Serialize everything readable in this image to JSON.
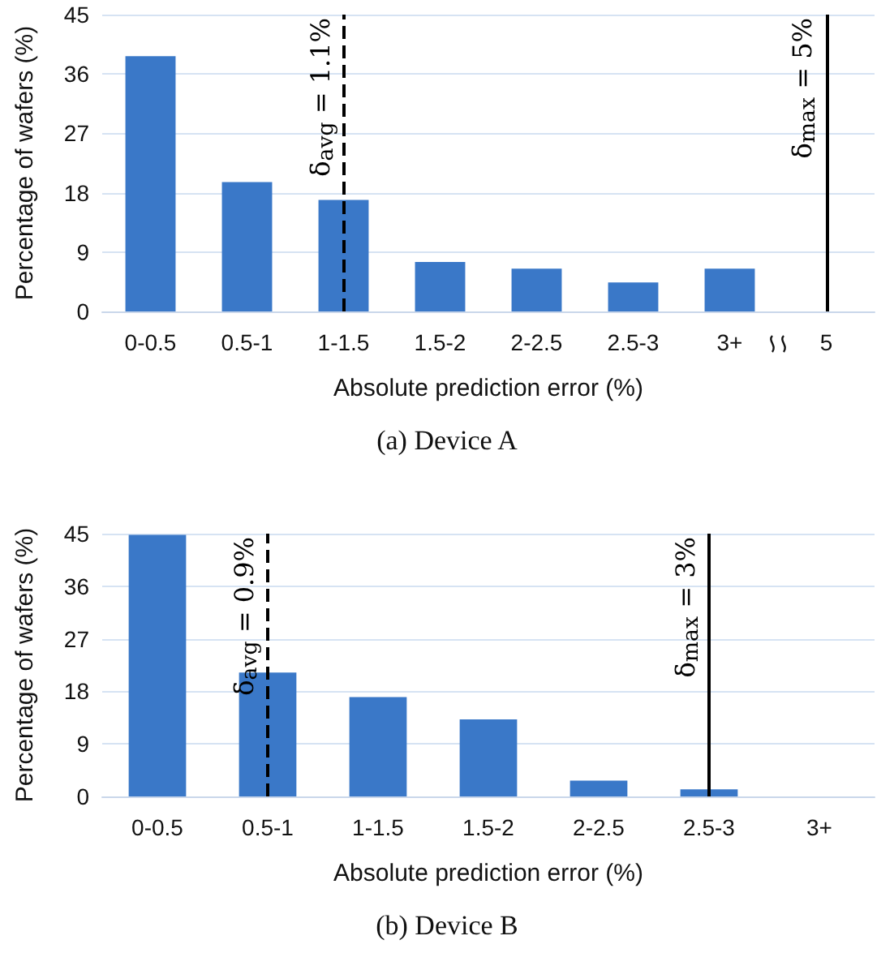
{
  "chart_data": [
    {
      "type": "bar",
      "title": "(a) Device A",
      "xlabel": "Absolute prediction error (%)",
      "ylabel": "Percentage of wafers (%)",
      "categories": [
        "0-0.5",
        "0.5-1",
        "1-1.5",
        "1.5-2",
        "2-2.5",
        "2.5-3",
        "3+",
        "5"
      ],
      "values": [
        38.7,
        19.6,
        16.9,
        7.5,
        6.5,
        4.4,
        6.5,
        null
      ],
      "color": "#3a78c8",
      "ylim": [
        0,
        45
      ],
      "yticks": [
        0,
        9,
        18,
        27,
        36,
        45
      ],
      "grid": "y",
      "ref_lines": [
        {
          "axis": "x",
          "value": "1-1.5",
          "label": "δ$_{avg}$ = 1.1%",
          "line_style": "dashed",
          "color": "#000000"
        },
        {
          "axis": "x",
          "value": "5",
          "label": "δ$_{max}$ = 5%",
          "line_style": "solid",
          "color": "#000000"
        }
      ]
    },
    {
      "type": "bar",
      "title": "(b) Device B",
      "xlabel": "Absolute prediction error (%)",
      "ylabel": "Percentage of wafers (%)",
      "categories": [
        "0-0.5",
        "0.5-1",
        "1-1.5",
        "1.5-2",
        "2-2.5",
        "2.5-3",
        "3+"
      ],
      "values": [
        44.8,
        21.2,
        17.0,
        13.2,
        2.7,
        1.2,
        0
      ],
      "color": "#3a78c8",
      "ylim": [
        0,
        45
      ],
      "yticks": [
        0,
        9,
        18,
        27,
        36,
        45
      ],
      "grid": "y",
      "ref_lines": [
        {
          "axis": "x",
          "value": "0.5-1",
          "label": "δ$_{avg}$ = 0.9%",
          "line_style": "dashed",
          "color": "#000000"
        },
        {
          "axis": "x",
          "value": "2.5-3",
          "label": "δ$_{max}$ = 3%",
          "line_style": "solid",
          "color": "#000000"
        }
      ]
    }
  ]
}
